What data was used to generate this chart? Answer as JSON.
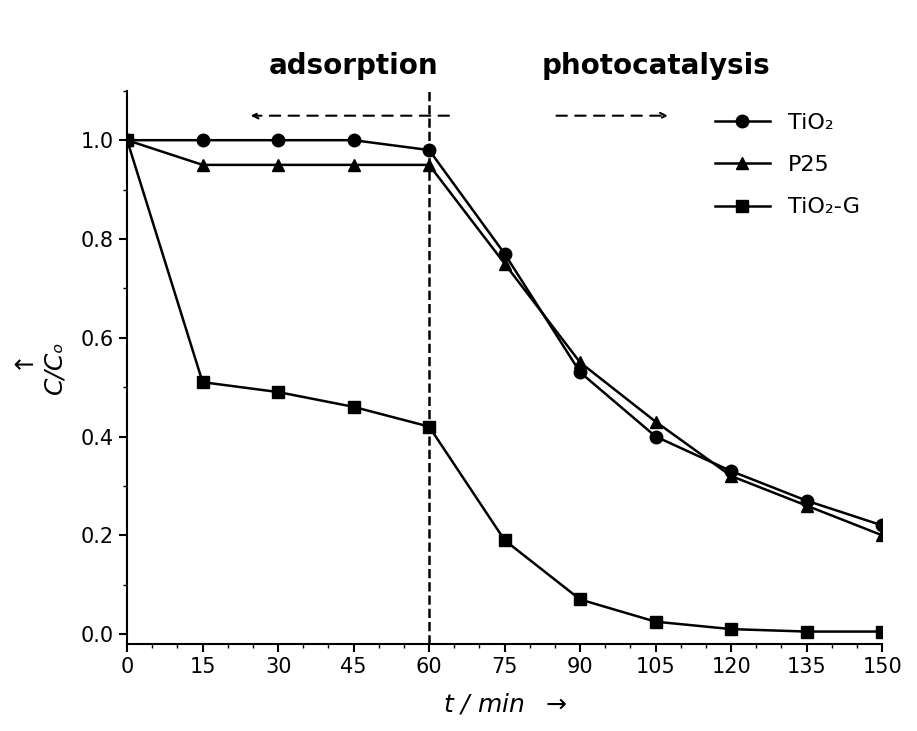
{
  "tio2_x": [
    0,
    15,
    30,
    45,
    60,
    75,
    90,
    105,
    120,
    135,
    150
  ],
  "tio2_y": [
    1.0,
    1.0,
    1.0,
    1.0,
    0.98,
    0.77,
    0.53,
    0.4,
    0.33,
    0.27,
    0.22
  ],
  "p25_x": [
    0,
    15,
    30,
    45,
    60,
    75,
    90,
    105,
    120,
    135,
    150
  ],
  "p25_y": [
    1.0,
    0.95,
    0.95,
    0.95,
    0.95,
    0.75,
    0.55,
    0.43,
    0.32,
    0.26,
    0.2
  ],
  "tio2g_x": [
    0,
    15,
    30,
    45,
    60,
    75,
    90,
    105,
    120,
    135,
    150
  ],
  "tio2g_y": [
    1.0,
    0.51,
    0.49,
    0.46,
    0.42,
    0.19,
    0.07,
    0.025,
    0.01,
    0.005,
    0.005
  ],
  "vline_x": 60,
  "xlabel": "t / min",
  "ylabel": "C/Cₒ",
  "xlim": [
    0,
    150
  ],
  "ylim": [
    -0.02,
    1.1
  ],
  "xticks": [
    0,
    15,
    30,
    45,
    60,
    75,
    90,
    105,
    120,
    135,
    150
  ],
  "yticks": [
    0.0,
    0.2,
    0.4,
    0.6,
    0.8,
    1.0
  ],
  "adsorption_label": "adsorption",
  "photocatalysis_label": "photocatalysis",
  "legend_tio2": "TiO₂",
  "legend_p25": "P25",
  "legend_tio2g": "TiO₂-G",
  "color": "#000000",
  "fontsize_labels": 18,
  "fontsize_ticks": 15,
  "fontsize_legend": 16,
  "fontsize_annot": 20,
  "linewidth": 1.8,
  "markersize": 9
}
